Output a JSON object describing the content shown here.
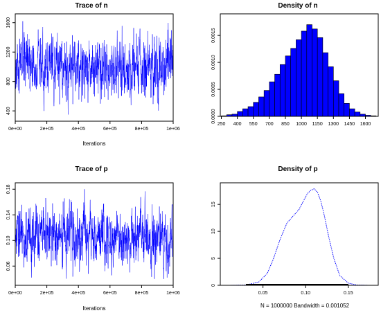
{
  "chart_data": [
    {
      "type": "line",
      "title": "Trace of n",
      "xlabel": "Iterations",
      "ylabel": "",
      "xlim": [
        0,
        1000000
      ],
      "ylim": [
        260,
        1720
      ],
      "xticks": [
        0,
        200000,
        400000,
        600000,
        800000,
        1000000
      ],
      "xtick_labels": [
        "0e+00",
        "2e+05",
        "4e+05",
        "6e+05",
        "8e+05",
        "1e+06"
      ],
      "yticks": [
        400,
        800,
        1200,
        1600
      ],
      "ytick_labels": [
        "400",
        "800",
        "1200",
        "1600"
      ],
      "color": "#0000ff",
      "trace": {
        "mean": 1000,
        "sd": 190,
        "lo": 300,
        "hi": 1700,
        "seed": 17
      }
    },
    {
      "type": "bar",
      "title": "Density of n",
      "xlabel": "",
      "ylabel": "",
      "xlim": [
        240,
        1720
      ],
      "ylim": [
        0,
        0.0019
      ],
      "bin_width": 50,
      "x": [
        250,
        300,
        350,
        400,
        450,
        500,
        550,
        600,
        650,
        700,
        750,
        800,
        850,
        900,
        950,
        1000,
        1050,
        1100,
        1150,
        1200,
        1250,
        1300,
        1350,
        1400,
        1450,
        1500,
        1550,
        1600,
        1650
      ],
      "values": [
        1e-05,
        3e-05,
        4e-05,
        9e-05,
        0.00014,
        0.00018,
        0.00026,
        0.00036,
        0.00048,
        0.00064,
        0.00078,
        0.00096,
        0.00112,
        0.00126,
        0.00142,
        0.00158,
        0.0017,
        0.00162,
        0.00146,
        0.00118,
        0.00092,
        0.00066,
        0.00042,
        0.00024,
        0.00014,
        8e-05,
        4e-05,
        2e-05,
        1e-05
      ],
      "xticks": [
        250,
        400,
        550,
        700,
        850,
        1000,
        1150,
        1300,
        1450,
        1600
      ],
      "xtick_labels": [
        "250",
        "400",
        "550",
        "700",
        "850",
        "1000",
        "1150",
        "1300",
        "1450",
        "1600"
      ],
      "yticks": [
        0,
        0.0005,
        0.001,
        0.0015
      ],
      "ytick_labels": [
        "0.0000",
        "0.0005",
        "0.0010",
        "0.0015"
      ],
      "color": "#0000ff"
    },
    {
      "type": "line",
      "title": "Trace of p",
      "xlabel": "Iterations",
      "ylabel": "",
      "xlim": [
        0,
        1000000
      ],
      "ylim": [
        0.03,
        0.19
      ],
      "xticks": [
        0,
        200000,
        400000,
        600000,
        800000,
        1000000
      ],
      "xtick_labels": [
        "0e+00",
        "2e+05",
        "4e+05",
        "6e+05",
        "8e+05",
        "1e+06"
      ],
      "yticks": [
        0.06,
        0.1,
        0.14,
        0.18
      ],
      "ytick_labels": [
        "0.06",
        "0.10",
        "0.14",
        "0.18"
      ],
      "color": "#0000ff",
      "trace": {
        "mean": 0.105,
        "sd": 0.022,
        "lo": 0.04,
        "hi": 0.18,
        "seed": 29
      }
    },
    {
      "type": "line",
      "title": "Density of p",
      "xlabel": "N = 1000000   Bandwidth = 0.001052",
      "ylabel": "",
      "xlim": [
        0.0,
        0.185
      ],
      "ylim": [
        0,
        19
      ],
      "x": [
        0.01,
        0.03,
        0.045,
        0.055,
        0.062,
        0.07,
        0.078,
        0.085,
        0.092,
        0.098,
        0.102,
        0.106,
        0.11,
        0.114,
        0.118,
        0.122,
        0.127,
        0.133,
        0.14,
        0.15,
        0.16,
        0.175
      ],
      "values": [
        0.0,
        0.05,
        0.6,
        2.2,
        4.8,
        8.5,
        11.5,
        12.8,
        14.0,
        15.8,
        17.0,
        17.6,
        17.9,
        17.2,
        15.5,
        12.8,
        9.0,
        5.0,
        1.8,
        0.4,
        0.05,
        0.0
      ],
      "xticks": [
        0.05,
        0.1,
        0.15
      ],
      "xtick_labels": [
        "0.05",
        "0.10",
        "0.15"
      ],
      "yticks": [
        0,
        5,
        10,
        15
      ],
      "ytick_labels": [
        "0",
        "5",
        "10",
        "15"
      ],
      "color": "#0000ff"
    }
  ]
}
